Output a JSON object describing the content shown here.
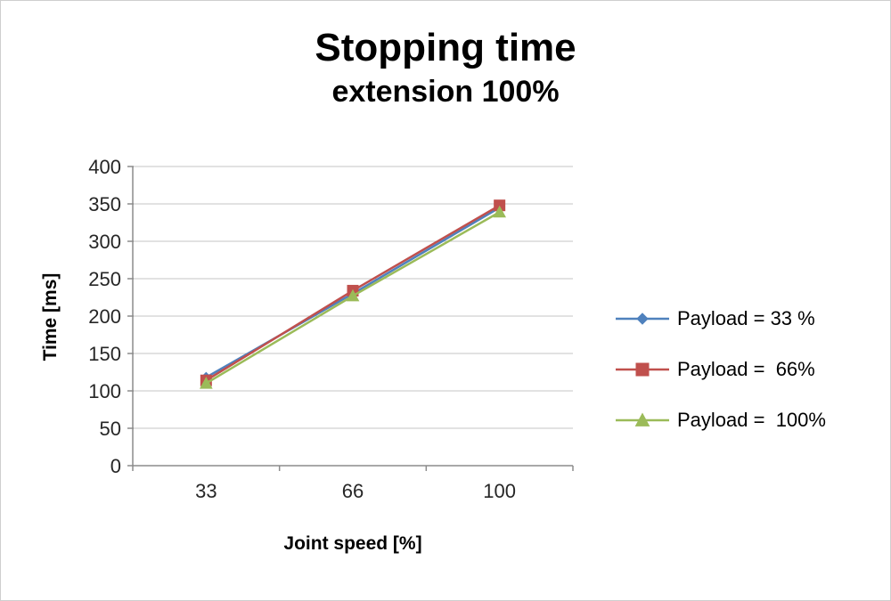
{
  "chart_data": {
    "type": "line",
    "title": "Stopping time",
    "subtitle": "extension 100%",
    "xlabel": "Joint speed [%]",
    "ylabel": "Time [ms]",
    "categories": [
      "33",
      "66",
      "100"
    ],
    "series": [
      {
        "name": "Payload = 33 %",
        "marker": "diamond",
        "color": "#4F81BD",
        "values": [
          118,
          230,
          345
        ]
      },
      {
        "name": "Payload =  66%",
        "marker": "square",
        "color": "#C0504D",
        "values": [
          114,
          234,
          348
        ]
      },
      {
        "name": "Payload =  100%",
        "marker": "triangle",
        "color": "#9BBB59",
        "values": [
          110,
          227,
          339
        ]
      }
    ],
    "ylim": [
      0,
      400
    ],
    "ytick_step": 50,
    "grid": true,
    "legend_position": "right"
  }
}
